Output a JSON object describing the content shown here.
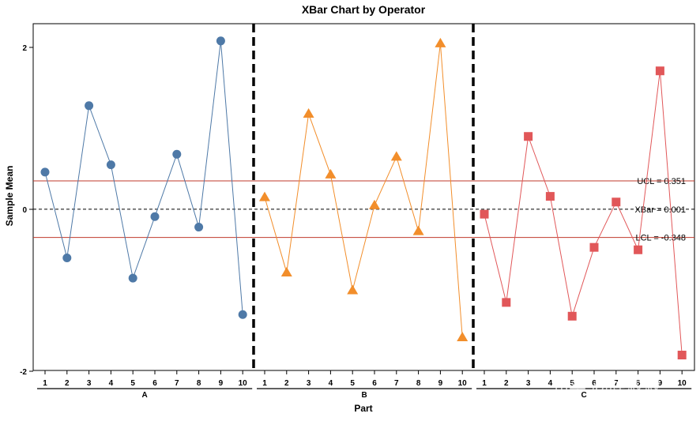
{
  "chart_data": {
    "type": "line",
    "title": "XBar Chart by Operator",
    "xlabel": "Part",
    "ylabel": "Sample Mean",
    "ylim": [
      -2,
      2.3
    ],
    "yticks": [
      2,
      0,
      -2
    ],
    "ytick_labels": [
      "2",
      "0",
      "-2"
    ],
    "categories": [
      "1",
      "2",
      "3",
      "4",
      "5",
      "6",
      "7",
      "8",
      "9",
      "10"
    ],
    "series": [
      {
        "name": "A",
        "marker": "circle",
        "color": "#4e79a7",
        "values": [
          0.46,
          -0.6,
          1.28,
          0.55,
          -0.85,
          -0.09,
          0.68,
          -0.22,
          2.08,
          -1.3
        ]
      },
      {
        "name": "B",
        "marker": "triangle",
        "color": "#f28e2b",
        "values": [
          0.15,
          -0.78,
          1.18,
          0.43,
          -1.0,
          0.05,
          0.65,
          -0.27,
          2.05,
          -1.58
        ]
      },
      {
        "name": "C",
        "marker": "square",
        "color": "#e15759",
        "values": [
          -0.06,
          -1.15,
          0.9,
          0.16,
          -1.32,
          -0.47,
          0.09,
          -0.5,
          1.71,
          -1.8
        ]
      }
    ],
    "reference_lines": [
      {
        "name": "UCL",
        "value": 0.351,
        "label": "UCL = 0.351",
        "color": "#c0392b",
        "style": "solid"
      },
      {
        "name": "XBar",
        "value": 0.001,
        "label": "XBar = 0.001",
        "color": "#000000",
        "style": "dashed"
      },
      {
        "name": "LCL",
        "value": -0.348,
        "label": "LCL = -0.348",
        "color": "#c0392b",
        "style": "solid"
      }
    ],
    "group_separator_color": "#000000",
    "grid": false
  },
  "watermark": "知乎 @陈叔叔"
}
